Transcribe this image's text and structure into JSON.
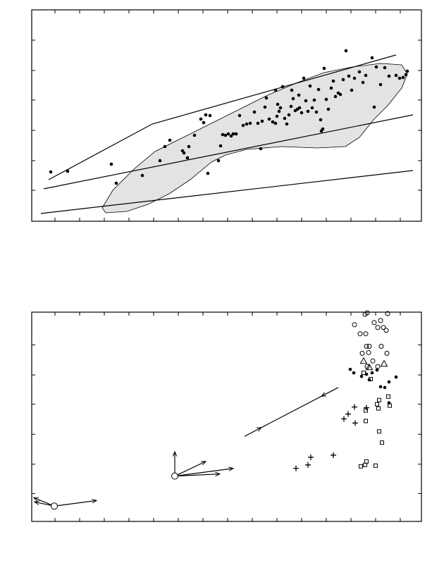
{
  "chart_data": [
    {
      "type": "scatter",
      "xlim": [
        0,
        553
      ],
      "ylim": [
        0,
        300
      ],
      "xticks": [
        33,
        68,
        103,
        138,
        173,
        208,
        243,
        278,
        313,
        348,
        383,
        418,
        453,
        488,
        523
      ],
      "yticks": [
        44,
        86,
        129,
        172,
        214,
        257
      ],
      "region": {
        "color": "#e3e3e3",
        "x": [
          100,
          115,
          145,
          175,
          215,
          255,
          295,
          335,
          375,
          415,
          455,
          495,
          525,
          533,
          525,
          505,
          485,
          465,
          445,
          405,
          355,
          305,
          275,
          255,
          225,
          195,
          165,
          135,
          105
        ],
        "y": [
          19,
          44,
          74,
          99,
          119,
          139,
          159,
          179,
          196,
          211,
          219,
          224,
          222,
          209,
          189,
          164,
          144,
          119,
          106,
          104,
          106,
          102,
          94,
          84,
          59,
          39,
          24,
          14,
          12
        ]
      },
      "lines": [
        {
          "x": [
            24,
            171,
            517
          ],
          "y": [
            59,
            138,
            236
          ]
        },
        {
          "x": [
            17,
            541
          ],
          "y": [
            46,
            151
          ]
        },
        {
          "x": [
            13,
            541
          ],
          "y": [
            11,
            72
          ]
        }
      ],
      "series": [
        {
          "marker": "dot",
          "color": "#000000",
          "x": [
            27,
            51,
            113,
            120,
            157,
            182,
            189,
            196,
            214,
            216,
            221,
            223,
            231,
            240,
            244,
            247,
            250,
            253,
            265,
            268,
            271,
            275,
            279,
            283,
            286,
            290,
            295,
            300,
            305,
            310,
            316,
            321,
            325,
            327,
            331,
            337,
            342,
            346,
            348,
            351,
            353,
            356,
            359,
            362,
            365,
            368,
            371,
            374,
            377,
            380,
            383,
            386,
            389,
            392,
            395,
            398,
            401,
            404,
            407,
            410,
            413,
            415,
            418,
            421,
            425,
            428,
            431,
            435,
            438,
            442,
            446,
            450,
            454,
            458,
            465,
            470,
            474,
            483,
            486,
            489,
            495,
            501,
            507,
            517,
            522,
            527,
            531,
            533,
            346,
            349,
            369,
            379,
            411,
            333
          ],
          "y": [
            70,
            71,
            81,
            54,
            65,
            86,
            106,
            115,
            100,
            97,
            90,
            106,
            122,
            145,
            140,
            151,
            68,
            150,
            86,
            107,
            123,
            122,
            124,
            121,
            124,
            124,
            150,
            136,
            138,
            139,
            155,
            139,
            103,
            142,
            162,
            145,
            141,
            139,
            149,
            156,
            161,
            191,
            146,
            138,
            151,
            163,
            174,
            157,
            159,
            161,
            154,
            203,
            171,
            156,
            192,
            161,
            172,
            155,
            187,
            144,
            131,
            217,
            173,
            159,
            189,
            199,
            177,
            182,
            180,
            201,
            242,
            206,
            186,
            203,
            212,
            197,
            207,
            232,
            162,
            219,
            194,
            218,
            206,
            207,
            203,
            204,
            208,
            213,
            186,
            166,
            186,
            179,
            128,
            175
          ]
        }
      ]
    },
    {
      "type": "scatter",
      "xlim": [
        0,
        553
      ],
      "ylim": [
        0,
        300
      ],
      "xticks": [
        33,
        68,
        103,
        138,
        173,
        208,
        243,
        278,
        313,
        348,
        383,
        418,
        453,
        488,
        523
      ],
      "yticks": [
        40,
        82,
        125,
        168,
        210,
        253
      ],
      "series": [
        {
          "marker": "circle",
          "color": "#000000",
          "x": [
            473,
            476,
            505,
            486,
            495,
            458,
            491,
            499,
            503,
            466,
            474,
            475,
            479,
            496,
            469,
            478,
            504,
            484,
            476,
            491
          ],
          "y": [
            297,
            299,
            298,
            285,
            288,
            282,
            278,
            278,
            274,
            269,
            269,
            251,
            251,
            251,
            241,
            242,
            241,
            230,
            222,
            222
          ]
        },
        {
          "marker": "dot",
          "color": "#000000",
          "x": [
            452,
            457,
            468,
            475,
            483,
            495,
            501,
            507,
            517,
            507,
            479,
            490
          ],
          "y": [
            218,
            213,
            208,
            211,
            213,
            193,
            192,
            200,
            207,
            170,
            203,
            217
          ]
        },
        {
          "marker": "square",
          "color": "#000000",
          "x": [
            471,
            481,
            506,
            493,
            490,
            492,
            508,
            474,
            493,
            497,
            474,
            473,
            475,
            467,
            488
          ],
          "y": [
            213,
            204,
            179,
            174,
            168,
            162,
            166,
            159,
            129,
            113,
            144,
            81,
            86,
            79,
            80
          ]
        },
        {
          "marker": "plus",
          "color": "#000000",
          "x": [
            375,
            392,
            396,
            428,
            443,
            449,
            458,
            475,
            459
          ],
          "y": [
            76,
            81,
            92,
            95,
            147,
            154,
            164,
            163,
            141
          ]
        },
        {
          "marker": "triangle",
          "color": "#000000",
          "x": [
            471,
            479,
            500
          ],
          "y": [
            230,
            221,
            226
          ]
        },
        {
          "marker": "big-circle",
          "color": "#000000",
          "x": [
            203,
            32
          ],
          "y": [
            65,
            22
          ]
        }
      ],
      "vectors": [
        {
          "x": [
            203,
            203
          ],
          "y": [
            65,
            100
          ]
        },
        {
          "x": [
            203,
            247
          ],
          "y": [
            65,
            86
          ]
        },
        {
          "x": [
            203,
            286
          ],
          "y": [
            65,
            76
          ]
        },
        {
          "x": [
            203,
            267
          ],
          "y": [
            65,
            68
          ]
        },
        {
          "x": [
            32,
            3
          ],
          "y": [
            22,
            34
          ]
        },
        {
          "x": [
            32,
            92
          ],
          "y": [
            22,
            30
          ]
        },
        {
          "x": [
            32,
            4
          ],
          "y": [
            22,
            28
          ]
        }
      ],
      "flow_line": {
        "x": [
          302,
          435
        ],
        "y": [
          122,
          192
        ]
      }
    }
  ]
}
